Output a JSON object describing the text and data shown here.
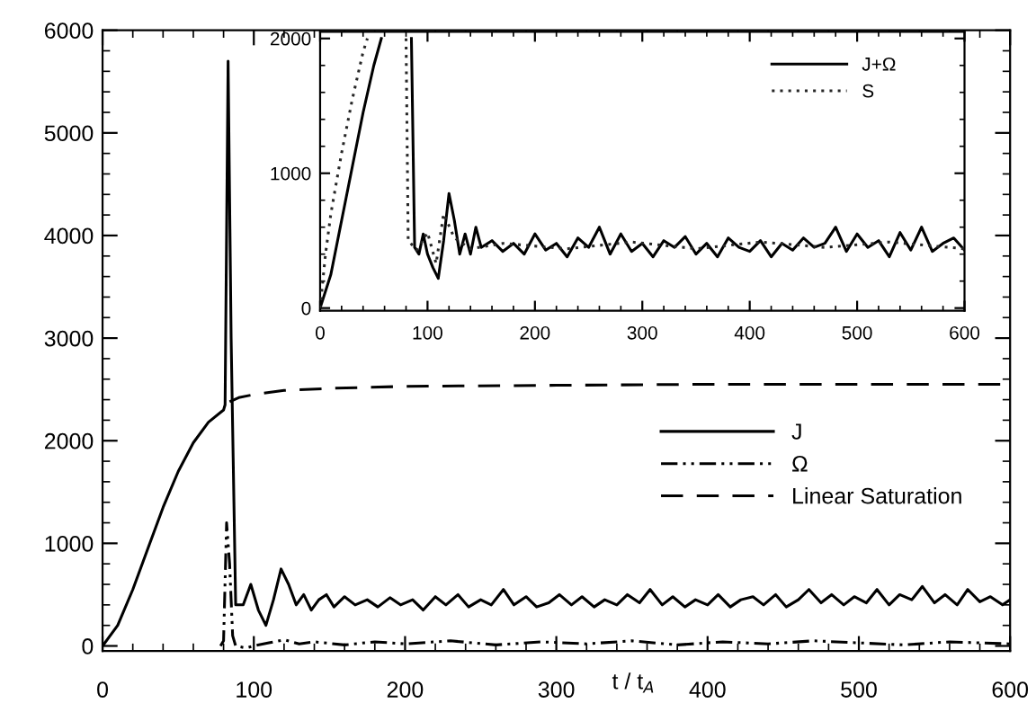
{
  "chart_data": [
    {
      "type": "line",
      "xlabel": "t / t$_{A}$",
      "xlim": [
        0,
        600
      ],
      "ylim": [
        -50,
        6000
      ],
      "xticks": [
        0,
        100,
        200,
        300,
        400,
        500,
        600
      ],
      "yticks": [
        0,
        1000,
        2000,
        3000,
        4000,
        5000,
        6000
      ],
      "grid": false,
      "legend": "center right",
      "marker": "none",
      "series": [
        {
          "name": "J",
          "color": "#000000",
          "line_style": "solid",
          "x": [
            0,
            10,
            20,
            30,
            40,
            50,
            60,
            70,
            80,
            81,
            83,
            85,
            88,
            93,
            98,
            103,
            108,
            113,
            118,
            123,
            128,
            133,
            138,
            143,
            148,
            153,
            160,
            167,
            175,
            182,
            190,
            197,
            205,
            212,
            220,
            227,
            235,
            242,
            250,
            257,
            265,
            272,
            280,
            287,
            295,
            302,
            310,
            317,
            325,
            332,
            340,
            347,
            355,
            362,
            370,
            377,
            385,
            392,
            400,
            407,
            415,
            422,
            430,
            437,
            445,
            452,
            460,
            467,
            475,
            482,
            490,
            497,
            505,
            512,
            520,
            527,
            535,
            542,
            550,
            557,
            565,
            572,
            580,
            587,
            595,
            600
          ],
          "values": [
            0,
            200,
            550,
            950,
            1350,
            1700,
            1980,
            2180,
            2300,
            2350,
            5700,
            3000,
            400,
            400,
            600,
            350,
            200,
            450,
            750,
            600,
            400,
            500,
            350,
            450,
            500,
            380,
            480,
            400,
            450,
            380,
            470,
            400,
            450,
            350,
            480,
            400,
            500,
            380,
            450,
            400,
            550,
            400,
            480,
            380,
            420,
            500,
            400,
            480,
            380,
            450,
            400,
            500,
            420,
            550,
            400,
            480,
            380,
            450,
            400,
            500,
            380,
            450,
            480,
            400,
            500,
            380,
            450,
            550,
            420,
            500,
            400,
            480,
            420,
            550,
            400,
            500,
            450,
            580,
            420,
            500,
            400,
            550,
            430,
            480,
            400,
            450
          ]
        },
        {
          "name": "Ω",
          "color": "#000000",
          "line_style": "dashdot",
          "x": [
            78,
            80,
            82,
            84,
            86,
            88,
            95,
            100,
            110,
            120,
            130,
            140,
            160,
            180,
            200,
            230,
            260,
            290,
            320,
            350,
            380,
            410,
            440,
            470,
            500,
            530,
            560,
            600
          ],
          "values": [
            0,
            50,
            1200,
            800,
            100,
            0,
            -20,
            0,
            30,
            60,
            20,
            40,
            10,
            40,
            20,
            50,
            10,
            40,
            20,
            50,
            10,
            40,
            20,
            50,
            30,
            10,
            40,
            20
          ]
        },
        {
          "name": "Linear Saturation",
          "color": "#000000",
          "line_style": "dashed",
          "x": [
            84,
            90,
            100,
            120,
            150,
            200,
            300,
            400,
            500,
            600
          ],
          "values": [
            2380,
            2420,
            2450,
            2490,
            2510,
            2530,
            2540,
            2550,
            2550,
            2550
          ]
        }
      ]
    },
    {
      "type": "line",
      "xlim": [
        0,
        600
      ],
      "ylim": [
        -20,
        2050
      ],
      "xticks": [
        0,
        100,
        200,
        300,
        400,
        500,
        600
      ],
      "yticks": [
        0,
        1000,
        2000
      ],
      "grid": false,
      "legend": "top right",
      "marker": "none",
      "series": [
        {
          "name": "J+Ω",
          "color": "#000000",
          "line_style": "solid",
          "x": [
            0,
            10,
            20,
            30,
            40,
            50,
            57,
            60,
            85,
            88,
            92,
            96,
            100,
            105,
            110,
            115,
            120,
            125,
            130,
            135,
            140,
            145,
            150,
            160,
            170,
            180,
            190,
            200,
            210,
            220,
            230,
            240,
            250,
            260,
            270,
            280,
            290,
            300,
            310,
            320,
            330,
            340,
            350,
            360,
            370,
            380,
            390,
            400,
            410,
            420,
            430,
            440,
            450,
            460,
            470,
            480,
            490,
            500,
            510,
            520,
            530,
            540,
            550,
            560,
            570,
            580,
            590,
            600
          ],
          "values": [
            0,
            250,
            650,
            1050,
            1450,
            1800,
            2000,
            null,
            2000,
            450,
            400,
            550,
            400,
            300,
            220,
            500,
            850,
            650,
            400,
            550,
            400,
            600,
            450,
            500,
            420,
            480,
            400,
            550,
            430,
            480,
            380,
            520,
            450,
            600,
            400,
            550,
            420,
            480,
            380,
            500,
            450,
            530,
            400,
            480,
            380,
            520,
            450,
            420,
            500,
            380,
            480,
            430,
            520,
            450,
            480,
            600,
            420,
            550,
            450,
            500,
            380,
            560,
            430,
            600,
            420,
            480,
            520,
            430
          ]
        },
        {
          "name": "S",
          "color": "#262626",
          "line_style": "dotted",
          "x": [
            0,
            5,
            10,
            20,
            30,
            40,
            44,
            50,
            80,
            82,
            90,
            100,
            108,
            115,
            125,
            140,
            170,
            230,
            290,
            350,
            410,
            470,
            530,
            600
          ],
          "values": [
            0,
            400,
            700,
            1150,
            1550,
            1900,
            2000,
            null,
            2000,
            500,
            430,
            560,
            330,
            700,
            520,
            440,
            480,
            440,
            490,
            440,
            490,
            450,
            490,
            440
          ]
        }
      ]
    }
  ]
}
